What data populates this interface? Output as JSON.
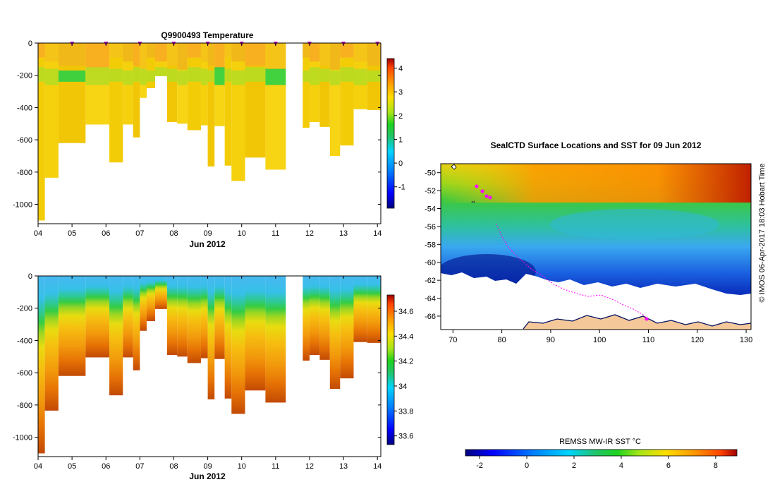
{
  "top_chart": {
    "title": "Q9900493  Temperature",
    "xlabel": "Jun 2012"
  },
  "bottom_chart": {
    "xlabel": "Jun 2012"
  },
  "map": {
    "title": "SealCTD Surface Locations and SST for 09 Jun 2012",
    "side_label": "© IMOS 06-Apr-2017 18:03 Hobart Time",
    "colorbar_label": "REMSS MW-IR SST °C"
  },
  "chart_data": [
    {
      "type": "heatmap",
      "name": "temperature-section",
      "title": "Q9900493  Temperature",
      "xlabel": "Jun 2012",
      "ylabel": "",
      "x_ticks": [
        "04",
        "05",
        "06",
        "07",
        "08",
        "09",
        "10",
        "11",
        "12",
        "13",
        "14"
      ],
      "y_ticks": [
        0,
        -200,
        -400,
        -600,
        -800,
        -1000
      ],
      "xlim": [
        4,
        14.1
      ],
      "ylim": [
        -1120,
        0
      ],
      "colorbar_ticks": [
        "-1",
        "0",
        "1",
        "2",
        "3",
        "4"
      ],
      "colorbar_range": [
        -1.9,
        4.4
      ],
      "colorbar_colors": [
        "#00007f",
        "#0000ff",
        "#007fff",
        "#00d4ff",
        "#22c46a",
        "#1fd21f",
        "#a6e619",
        "#ffdd00",
        "#ff9900",
        "#ff4400",
        "#a00000"
      ],
      "profile_markers_day": [
        5,
        6,
        7,
        8,
        9,
        10,
        11,
        12,
        13,
        14
      ],
      "profiles": [
        {
          "day": 4.0,
          "end": 4.2,
          "depth": 1100
        },
        {
          "day": 4.2,
          "end": 4.6,
          "depth": 835
        },
        {
          "day": 4.6,
          "end": 5.4,
          "depth": 620
        },
        {
          "day": 5.4,
          "end": 6.1,
          "depth": 505
        },
        {
          "day": 6.1,
          "end": 6.5,
          "depth": 740
        },
        {
          "day": 6.5,
          "end": 6.8,
          "depth": 505
        },
        {
          "day": 6.8,
          "end": 7.0,
          "depth": 585
        },
        {
          "day": 7.0,
          "end": 7.2,
          "depth": 340
        },
        {
          "day": 7.2,
          "end": 7.45,
          "depth": 280
        },
        {
          "day": 7.45,
          "end": 7.8,
          "depth": 205
        },
        {
          "day": 7.8,
          "end": 8.1,
          "depth": 490
        },
        {
          "day": 8.1,
          "end": 8.4,
          "depth": 500
        },
        {
          "day": 8.4,
          "end": 8.8,
          "depth": 540
        },
        {
          "day": 8.8,
          "end": 9.0,
          "depth": 510
        },
        {
          "day": 9.0,
          "end": 9.2,
          "depth": 765
        },
        {
          "day": 9.2,
          "end": 9.5,
          "depth": 515
        },
        {
          "day": 9.5,
          "end": 9.7,
          "depth": 760
        },
        {
          "day": 9.7,
          "end": 10.1,
          "depth": 855
        },
        {
          "day": 10.1,
          "end": 10.7,
          "depth": 710
        },
        {
          "day": 10.7,
          "end": 11.3,
          "depth": 785
        },
        {
          "day": 11.8,
          "end": 12.0,
          "depth": 525
        },
        {
          "day": 12.0,
          "end": 12.3,
          "depth": 490
        },
        {
          "day": 12.3,
          "end": 12.6,
          "depth": 520
        },
        {
          "day": 12.6,
          "end": 12.9,
          "depth": 700
        },
        {
          "day": 12.9,
          "end": 13.3,
          "depth": 635
        },
        {
          "day": 13.3,
          "end": 13.7,
          "depth": 410
        },
        {
          "day": 13.7,
          "end": 14.1,
          "depth": 415
        }
      ]
    },
    {
      "type": "heatmap",
      "name": "salinity-section",
      "title": "",
      "xlabel": "Jun 2012",
      "ylabel": "",
      "x_ticks": [
        "04",
        "05",
        "06",
        "07",
        "08",
        "09",
        "10",
        "11",
        "12",
        "13",
        "14"
      ],
      "y_ticks": [
        0,
        -200,
        -400,
        -600,
        -800,
        -1000
      ],
      "xlim": [
        4,
        14.1
      ],
      "ylim": [
        -1120,
        0
      ],
      "colorbar_ticks": [
        "33.6",
        "33.8",
        "34",
        "34.2",
        "34.4",
        "34.6"
      ],
      "colorbar_range": [
        33.53,
        34.73
      ],
      "colorbar_colors": [
        "#00007f",
        "#0000ff",
        "#007fff",
        "#00d4ff",
        "#22c46a",
        "#1fd21f",
        "#a6e619",
        "#ffdd00",
        "#ff9900",
        "#ff4400",
        "#a00000"
      ]
    },
    {
      "type": "heatmap",
      "name": "sst-map",
      "title": "SealCTD Surface Locations and SST for 09 Jun 2012",
      "xlabel": "",
      "ylabel": "",
      "x_ticks": [
        "70",
        "80",
        "90",
        "100",
        "110",
        "120",
        "130"
      ],
      "y_ticks": [
        "-50",
        "-52",
        "-54",
        "-56",
        "-58",
        "-60",
        "-62",
        "-64",
        "-66"
      ],
      "xlim": [
        67.5,
        131
      ],
      "ylim": [
        -67.5,
        -49
      ],
      "colorbar_label": "REMSS MW-IR SST °C",
      "colorbar_ticks": [
        "-2",
        "0",
        "2",
        "4",
        "6",
        "8"
      ],
      "colorbar_range": [
        -2.6,
        8.9
      ],
      "colorbar_colors": [
        "#00007f",
        "#0000ff",
        "#007fff",
        "#00d4ff",
        "#22c46a",
        "#1fd21f",
        "#a6e619",
        "#ffdd00",
        "#ff9900",
        "#ff4400",
        "#a00000"
      ],
      "track_color": "#ff00ff",
      "land_color": "#f5c89a"
    }
  ]
}
